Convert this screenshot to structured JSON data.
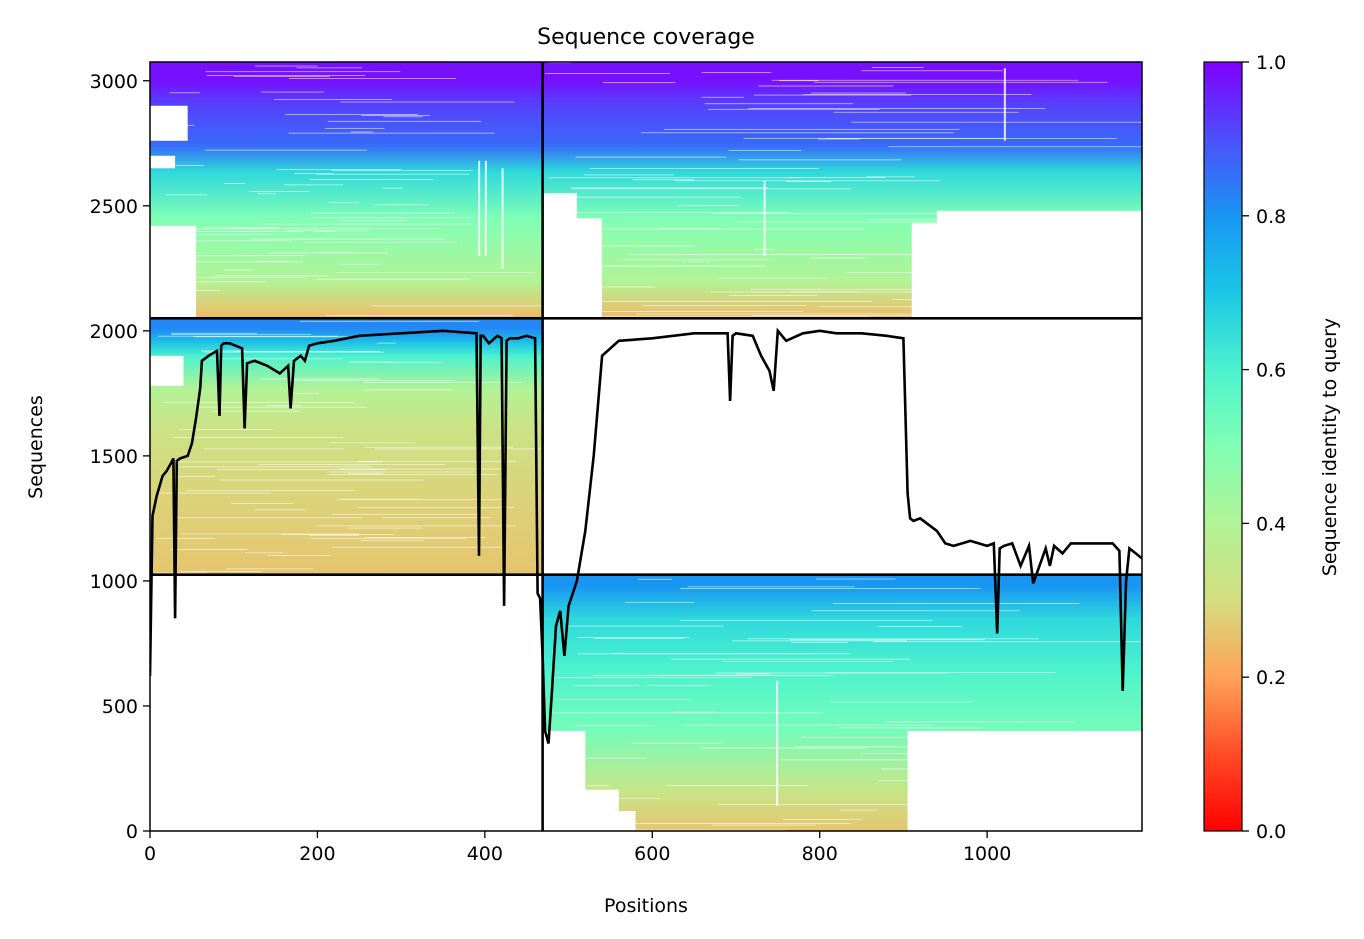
{
  "chart_data": {
    "type": "heatmap",
    "title": "Sequence coverage",
    "xlabel": "Positions",
    "ylabel": "Sequences",
    "xlim": [
      0,
      1185
    ],
    "ylim": [
      0,
      3075
    ],
    "xticks": [
      0,
      200,
      400,
      600,
      800,
      1000
    ],
    "yticks": [
      0,
      500,
      1000,
      1500,
      2000,
      2500,
      3000
    ],
    "colorbar": {
      "label": "Sequence identity to query",
      "colormap": "rainbow_r",
      "range": [
        0,
        1
      ],
      "ticks": [
        0.0,
        0.2,
        0.4,
        0.6,
        0.8,
        1.0
      ]
    },
    "dividers": {
      "vertical_x": 469,
      "horizontal_y": [
        1025,
        2050
      ]
    },
    "blocks": [
      {
        "x0": 0,
        "x1": 469,
        "y0": 2050,
        "y1": 3075,
        "bands": [
          [
            2050,
            2080,
            0.24
          ],
          [
            2080,
            2200,
            0.26
          ],
          [
            2200,
            2450,
            0.4
          ],
          [
            2450,
            2640,
            0.5
          ],
          [
            2640,
            2740,
            0.66
          ],
          [
            2740,
            2910,
            0.86
          ],
          [
            2910,
            3000,
            0.92
          ],
          [
            3000,
            3075,
            0.98
          ]
        ]
      },
      {
        "x0": 469,
        "x1": 1185,
        "y0": 2050,
        "y1": 3075,
        "bands": [
          [
            2050,
            2080,
            0.24
          ],
          [
            2080,
            2200,
            0.26
          ],
          [
            2200,
            2450,
            0.4
          ],
          [
            2450,
            2640,
            0.5
          ],
          [
            2640,
            2740,
            0.66
          ],
          [
            2740,
            2910,
            0.86
          ],
          [
            2910,
            3000,
            0.92
          ],
          [
            3000,
            3075,
            0.98
          ]
        ]
      },
      {
        "x0": 0,
        "x1": 469,
        "y0": 1025,
        "y1": 2050,
        "bands": [
          [
            1025,
            1300,
            0.26
          ],
          [
            1300,
            1600,
            0.28
          ],
          [
            1600,
            1770,
            0.32
          ],
          [
            1770,
            1900,
            0.4
          ],
          [
            1900,
            1960,
            0.6
          ],
          [
            1960,
            2010,
            0.72
          ],
          [
            2010,
            2050,
            0.82
          ]
        ]
      },
      {
        "x0": 469,
        "x1": 1185,
        "y0": 0,
        "y1": 1025,
        "bands": [
          [
            0,
            165,
            0.26
          ],
          [
            165,
            400,
            0.34
          ],
          [
            400,
            650,
            0.52
          ],
          [
            650,
            850,
            0.6
          ],
          [
            850,
            980,
            0.66
          ],
          [
            980,
            1025,
            0.8
          ]
        ]
      }
    ],
    "coverage_line": {
      "x": [
        0,
        3,
        8,
        15,
        20,
        25,
        28,
        30,
        32,
        36,
        45,
        50,
        55,
        60,
        62,
        70,
        80,
        83,
        85,
        88,
        95,
        110,
        113,
        116,
        125,
        140,
        155,
        165,
        168,
        172,
        180,
        185,
        190,
        200,
        220,
        250,
        300,
        350,
        390,
        393,
        395,
        398,
        405,
        415,
        420,
        423,
        426,
        430,
        440,
        450,
        460,
        463,
        466,
        469,
        472,
        476,
        480,
        485,
        490,
        495,
        500,
        510,
        520,
        530,
        540,
        560,
        600,
        650,
        690,
        693,
        696,
        700,
        720,
        730,
        740,
        745,
        750,
        760,
        780,
        800,
        820,
        850,
        880,
        900,
        905,
        908,
        912,
        920,
        940,
        950,
        960,
        980,
        1000,
        1008,
        1012,
        1015,
        1020,
        1030,
        1040,
        1050,
        1055,
        1070,
        1075,
        1080,
        1090,
        1100,
        1150,
        1158,
        1162,
        1166,
        1170,
        1185
      ],
      "y": [
        620,
        1260,
        1340,
        1420,
        1440,
        1470,
        1490,
        850,
        1480,
        1490,
        1500,
        1550,
        1650,
        1770,
        1880,
        1900,
        1920,
        1660,
        1940,
        1950,
        1950,
        1930,
        1610,
        1870,
        1880,
        1860,
        1830,
        1860,
        1690,
        1880,
        1900,
        1880,
        1940,
        1950,
        1960,
        1980,
        1990,
        2000,
        1990,
        1100,
        1980,
        1980,
        1950,
        1980,
        1970,
        900,
        1960,
        1970,
        1970,
        1980,
        1970,
        950,
        930,
        700,
        400,
        350,
        550,
        820,
        880,
        700,
        900,
        1000,
        1200,
        1500,
        1900,
        1960,
        1970,
        1990,
        1990,
        1720,
        1980,
        1990,
        1980,
        1900,
        1840,
        1760,
        2000,
        1960,
        1990,
        2000,
        1990,
        1990,
        1980,
        1970,
        1350,
        1250,
        1240,
        1250,
        1200,
        1150,
        1140,
        1160,
        1140,
        1150,
        790,
        1130,
        1140,
        1150,
        1060,
        1140,
        990,
        1130,
        1060,
        1140,
        1110,
        1150,
        1150,
        1120,
        560,
        1000,
        1130,
        1090
      ]
    }
  }
}
